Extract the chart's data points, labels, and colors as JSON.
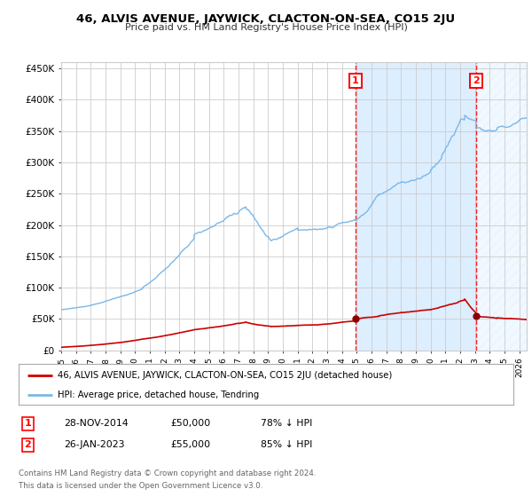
{
  "title": "46, ALVIS AVENUE, JAYWICK, CLACTON-ON-SEA, CO15 2JU",
  "subtitle": "Price paid vs. HM Land Registry's House Price Index (HPI)",
  "hpi_color": "#7ab8e8",
  "price_color": "#cc0000",
  "marker_color": "#880000",
  "bg_color": "#ffffff",
  "plot_bg": "#ffffff",
  "shading_color": "#ddeeff",
  "grid_color": "#cccccc",
  "ylim": [
    0,
    460000
  ],
  "yticks": [
    0,
    50000,
    100000,
    150000,
    200000,
    250000,
    300000,
    350000,
    400000,
    450000
  ],
  "transaction1_date": 2014.91,
  "transaction1_price": 50000,
  "transaction2_date": 2023.07,
  "transaction2_price": 55000,
  "legend_line1": "46, ALVIS AVENUE, JAYWICK, CLACTON-ON-SEA, CO15 2JU (detached house)",
  "legend_line2": "HPI: Average price, detached house, Tendring",
  "table_row1": [
    "1",
    "28-NOV-2014",
    "£50,000",
    "78% ↓ HPI"
  ],
  "table_row2": [
    "2",
    "26-JAN-2023",
    "£55,000",
    "85% ↓ HPI"
  ],
  "footer1": "Contains HM Land Registry data © Crown copyright and database right 2024.",
  "footer2": "This data is licensed under the Open Government Licence v3.0.",
  "xmin": 1995.0,
  "xmax": 2026.5
}
